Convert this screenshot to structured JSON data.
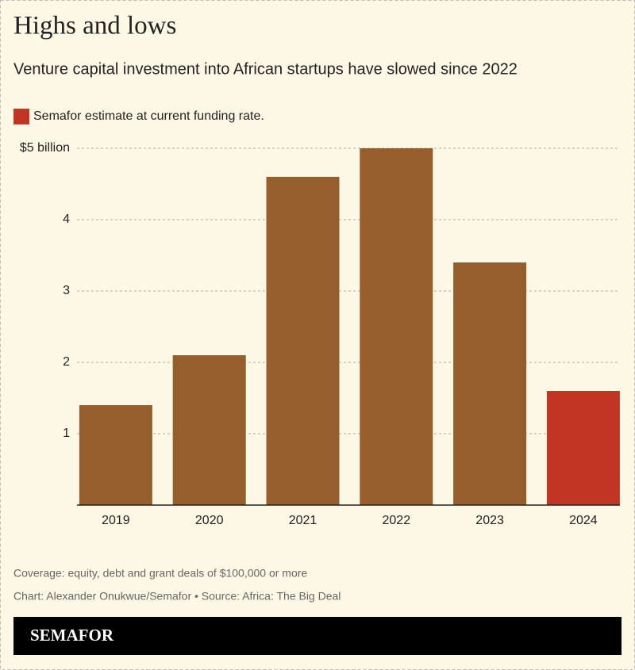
{
  "chart_data": {
    "type": "bar",
    "title": "Highs and lows",
    "subtitle": "Venture capital investment into African startups have slowed since 2022",
    "legend": {
      "label": "Semafor estimate at current funding rate.",
      "color": "#c13524"
    },
    "categories": [
      "2019",
      "2020",
      "2021",
      "2022",
      "2023",
      "2024"
    ],
    "values": [
      1.4,
      2.1,
      4.6,
      5.0,
      3.4,
      1.6
    ],
    "colors": [
      "#955e2d",
      "#955e2d",
      "#955e2d",
      "#955e2d",
      "#955e2d",
      "#c13524"
    ],
    "ylim": [
      0,
      5
    ],
    "yticks": [
      1,
      2,
      3,
      4,
      {
        "value": 5,
        "label": "$5 billion"
      }
    ],
    "grid": true,
    "notes": [
      "Coverage: equity, debt and grant deals of $100,000 or more",
      "Chart: Alexander Onukwue/Semafor • Source: Africa: The Big Deal"
    ],
    "brand": "SEMAFOR"
  }
}
